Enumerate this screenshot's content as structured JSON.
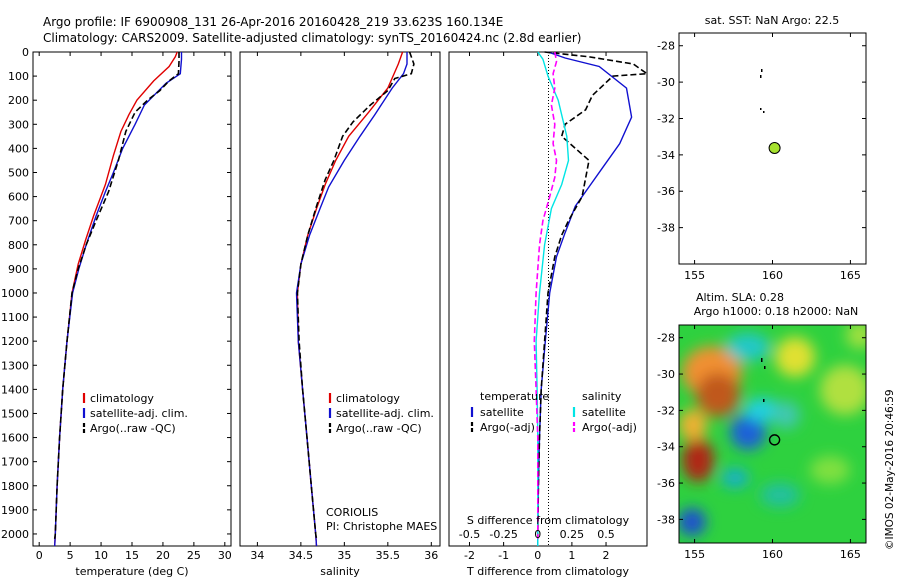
{
  "header": {
    "line1": "Argo profile: IF 6900908_131 26-Apr-2016 20160428_219 33.623S 160.134E",
    "line2": "Climatology: CARS2009. Satellite-adjusted climatology: synTS_20160424.nc (2.8d earlier)"
  },
  "colors": {
    "climatology": "#e00000",
    "satellite": "#1010d0",
    "argo": "#000000",
    "sal_satellite": "#00e5e5",
    "sal_argo": "#ff00ff",
    "argo_marker": "#a6e22e"
  },
  "chart_data": [
    {
      "type": "line",
      "id": "temperature",
      "xlabel": "temperature (deg C)",
      "ylabel": "",
      "xlim": [
        -1,
        31
      ],
      "ylim": [
        2050,
        0
      ],
      "xticks": [
        0,
        5,
        10,
        15,
        20,
        25,
        30
      ],
      "yticks": [
        0,
        100,
        200,
        300,
        400,
        500,
        600,
        700,
        800,
        900,
        1000,
        1100,
        1200,
        1300,
        1400,
        1500,
        1600,
        1700,
        1800,
        1900,
        2000
      ],
      "legend": {
        "position": "lower-right",
        "entries": [
          "climatology",
          "satellite-adj. clim.",
          "Argo(..raw -QC)"
        ]
      },
      "series": [
        {
          "name": "climatology",
          "style": "solid",
          "color_key": "climatology",
          "points": [
            [
              22.3,
              0
            ],
            [
              22,
              20
            ],
            [
              21,
              60
            ],
            [
              18.5,
              120
            ],
            [
              15.8,
              200
            ],
            [
              14.5,
              260
            ],
            [
              13.2,
              330
            ],
            [
              12,
              430
            ],
            [
              10.7,
              550
            ],
            [
              8.8,
              680
            ],
            [
              7.5,
              780
            ],
            [
              6.3,
              880
            ],
            [
              5.3,
              1000
            ],
            [
              4.5,
              1200
            ],
            [
              3.8,
              1400
            ],
            [
              3.3,
              1600
            ],
            [
              2.9,
              1800
            ],
            [
              2.6,
              2000
            ],
            [
              2.5,
              2050
            ]
          ]
        },
        {
          "name": "satellite-adj. clim.",
          "style": "solid",
          "color_key": "satellite",
          "points": [
            [
              23,
              0
            ],
            [
              23,
              30
            ],
            [
              22.8,
              90
            ],
            [
              20.5,
              130
            ],
            [
              17,
              220
            ],
            [
              15.5,
              300
            ],
            [
              13.5,
              400
            ],
            [
              12,
              500
            ],
            [
              10.7,
              580
            ],
            [
              9.2,
              680
            ],
            [
              7.6,
              800
            ],
            [
              6.4,
              900
            ],
            [
              5.4,
              1000
            ],
            [
              4.5,
              1200
            ],
            [
              3.8,
              1400
            ],
            [
              3.3,
              1600
            ],
            [
              2.9,
              1800
            ],
            [
              2.6,
              2000
            ],
            [
              2.5,
              2050
            ]
          ]
        },
        {
          "name": "Argo(..raw -QC)",
          "style": "dashed",
          "color_key": "argo",
          "points": [
            [
              22.6,
              0
            ],
            [
              22.6,
              40
            ],
            [
              22.5,
              90
            ],
            [
              21,
              120
            ],
            [
              19.5,
              160
            ],
            [
              17.5,
              200
            ],
            [
              15.5,
              250
            ],
            [
              14,
              330
            ],
            [
              12.8,
              450
            ],
            [
              11.2,
              580
            ],
            [
              9.2,
              700
            ],
            [
              7.6,
              800
            ],
            [
              6.3,
              900
            ],
            [
              5.3,
              1000
            ],
            [
              4.5,
              1200
            ],
            [
              3.8,
              1400
            ],
            [
              3.3,
              1600
            ],
            [
              2.9,
              1800
            ],
            [
              2.6,
              2000
            ],
            [
              2.5,
              2020
            ]
          ]
        }
      ]
    },
    {
      "type": "line",
      "id": "salinity",
      "xlabel": "salinity",
      "ylabel": "",
      "xlim": [
        33.8,
        36.1
      ],
      "ylim": [
        2050,
        0
      ],
      "xticks": [
        34,
        34.5,
        35,
        35.5,
        36
      ],
      "legend": {
        "position": "lower-right",
        "entries": [
          "climatology",
          "satellite-adj. clim.",
          "Argo(..raw -QC)"
        ]
      },
      "annotation": [
        "CORIOLIS",
        "PI: Christophe MAES"
      ],
      "series": [
        {
          "name": "climatology",
          "style": "solid",
          "color_key": "climatology",
          "points": [
            [
              35.67,
              0
            ],
            [
              35.62,
              50
            ],
            [
              35.5,
              150
            ],
            [
              35.28,
              250
            ],
            [
              35.05,
              350
            ],
            [
              34.9,
              450
            ],
            [
              34.78,
              550
            ],
            [
              34.68,
              650
            ],
            [
              34.58,
              760
            ],
            [
              34.5,
              880
            ],
            [
              34.46,
              1000
            ],
            [
              34.47,
              1200
            ],
            [
              34.52,
              1400
            ],
            [
              34.57,
              1600
            ],
            [
              34.62,
              1800
            ],
            [
              34.67,
              2000
            ],
            [
              34.68,
              2050
            ]
          ]
        },
        {
          "name": "satellite-adj. clim.",
          "style": "solid",
          "color_key": "satellite",
          "points": [
            [
              35.72,
              0
            ],
            [
              35.72,
              50
            ],
            [
              35.68,
              90
            ],
            [
              35.55,
              150
            ],
            [
              35.35,
              260
            ],
            [
              35.18,
              350
            ],
            [
              35,
              450
            ],
            [
              34.82,
              560
            ],
            [
              34.72,
              650
            ],
            [
              34.6,
              760
            ],
            [
              34.5,
              880
            ],
            [
              34.45,
              1000
            ],
            [
              34.47,
              1200
            ],
            [
              34.52,
              1400
            ],
            [
              34.57,
              1600
            ],
            [
              34.62,
              1800
            ],
            [
              34.67,
              2000
            ],
            [
              34.68,
              2050
            ]
          ]
        },
        {
          "name": "Argo(..raw -QC)",
          "style": "dashed",
          "color_key": "argo",
          "points": [
            [
              35.75,
              0
            ],
            [
              35.8,
              50
            ],
            [
              35.77,
              90
            ],
            [
              35.58,
              110
            ],
            [
              35.5,
              160
            ],
            [
              35.3,
              220
            ],
            [
              35.1,
              290
            ],
            [
              34.98,
              350
            ],
            [
              34.88,
              450
            ],
            [
              34.78,
              530
            ],
            [
              34.68,
              640
            ],
            [
              34.58,
              760
            ],
            [
              34.5,
              880
            ],
            [
              34.46,
              1000
            ],
            [
              34.48,
              1200
            ],
            [
              34.52,
              1400
            ],
            [
              34.57,
              1600
            ],
            [
              34.62,
              1800
            ],
            [
              34.67,
              2000
            ],
            [
              34.68,
              2020
            ]
          ]
        }
      ]
    },
    {
      "type": "line",
      "id": "difference",
      "xlabel": "T difference from climatology",
      "xlabel2": "S difference from climatology",
      "ylabel": "",
      "xlim": [
        -2.6,
        3.2
      ],
      "ylim": [
        2050,
        0
      ],
      "xticks": [
        -2,
        -1,
        0,
        1,
        2
      ],
      "sticks_labels": [
        "-0.5",
        "-0.25",
        "0",
        "0.25",
        "0.5"
      ],
      "sticks_pos": [
        -2,
        -1,
        0,
        1,
        2
      ],
      "legend": {
        "position": "lower-center",
        "temperature_title": "temperature",
        "salinity_title": "salinity",
        "entries": [
          "satellite",
          "Argo(-adj)",
          "satellite",
          "Argo(-adj)"
        ]
      },
      "series": [
        {
          "name": "satellite",
          "variable": "temperature",
          "style": "solid",
          "color_key": "satellite",
          "points": [
            [
              0.3,
              0
            ],
            [
              0.8,
              25
            ],
            [
              1.8,
              60
            ],
            [
              2.6,
              150
            ],
            [
              2.75,
              270
            ],
            [
              2.4,
              380
            ],
            [
              1.9,
              480
            ],
            [
              1.5,
              560
            ],
            [
              1.1,
              640
            ],
            [
              0.8,
              750
            ],
            [
              0.55,
              850
            ],
            [
              0.35,
              1000
            ],
            [
              0.22,
              1200
            ],
            [
              0.1,
              1400
            ],
            [
              0.05,
              1600
            ],
            [
              0.02,
              1800
            ],
            [
              0,
              2000
            ],
            [
              0,
              2050
            ]
          ]
        },
        {
          "name": "Argo(-adj)",
          "variable": "temperature",
          "style": "dashed",
          "color_key": "argo",
          "points": [
            [
              0.2,
              0
            ],
            [
              1.5,
              20
            ],
            [
              2.8,
              50
            ],
            [
              3.2,
              90
            ],
            [
              2.2,
              100
            ],
            [
              1.6,
              180
            ],
            [
              1.4,
              240
            ],
            [
              0.8,
              300
            ],
            [
              0.7,
              350
            ],
            [
              1.5,
              450
            ],
            [
              1.3,
              600
            ],
            [
              0.9,
              700
            ],
            [
              0.7,
              760
            ],
            [
              0.5,
              850
            ],
            [
              0.3,
              1000
            ],
            [
              0.2,
              1200
            ],
            [
              0.1,
              1400
            ],
            [
              0.05,
              1600
            ],
            [
              0.02,
              1800
            ],
            [
              0,
              2000
            ],
            [
              0,
              2030
            ]
          ]
        },
        {
          "name": "satellite",
          "variable": "salinity",
          "style": "solid",
          "color_key": "sal_satellite",
          "points": [
            [
              0,
              0
            ],
            [
              0.15,
              30
            ],
            [
              0.3,
              100
            ],
            [
              0.6,
              200
            ],
            [
              0.85,
              350
            ],
            [
              0.9,
              450
            ],
            [
              0.7,
              550
            ],
            [
              0.4,
              650
            ],
            [
              0.2,
              800
            ],
            [
              0.05,
              1000
            ],
            [
              -0.05,
              1200
            ],
            [
              -0.02,
              1400
            ],
            [
              0,
              1600
            ],
            [
              0,
              1800
            ],
            [
              0,
              2000
            ],
            [
              0,
              2050
            ]
          ]
        },
        {
          "name": "Argo(-adj)",
          "variable": "salinity",
          "style": "dashed",
          "color_key": "sal_argo",
          "points": [
            [
              0.5,
              0
            ],
            [
              0.55,
              40
            ],
            [
              0.45,
              90
            ],
            [
              0.5,
              150
            ],
            [
              0.4,
              220
            ],
            [
              0.5,
              300
            ],
            [
              0.45,
              380
            ],
            [
              0.55,
              450
            ],
            [
              0.5,
              520
            ],
            [
              0.35,
              600
            ],
            [
              0.15,
              700
            ],
            [
              0.05,
              800
            ],
            [
              -0.05,
              1000
            ],
            [
              -0.1,
              1200
            ],
            [
              -0.05,
              1400
            ],
            [
              0,
              1600
            ],
            [
              0,
              1800
            ],
            [
              0,
              2000
            ],
            [
              0,
              2020
            ]
          ]
        }
      ]
    },
    {
      "type": "scatter",
      "id": "sst-map",
      "title": "sat. SST: NaN Argo: 22.5",
      "xlim": [
        154,
        166
      ],
      "ylim": [
        -40,
        -27.3
      ],
      "xticks": [
        155,
        160,
        165
      ],
      "yticks": [
        -28,
        -30,
        -32,
        -34,
        -36,
        -38
      ],
      "points": [
        {
          "x": 160.134,
          "y": -33.623
        }
      ]
    },
    {
      "type": "heatmap",
      "id": "sla-map",
      "title": "Altim. SLA: 0.28",
      "subtitle": "Argo h1000: 0.18 h2000: NaN",
      "xlim": [
        154,
        166
      ],
      "ylim": [
        -39.3,
        -27.3
      ],
      "xticks": [
        155,
        160,
        165
      ],
      "yticks": [
        -28,
        -30,
        -32,
        -34,
        -36,
        -38
      ],
      "points": [
        {
          "x": 160.134,
          "y": -33.623
        }
      ]
    }
  ],
  "side_label": "©IMOS 02-May-2016 20:46:59"
}
